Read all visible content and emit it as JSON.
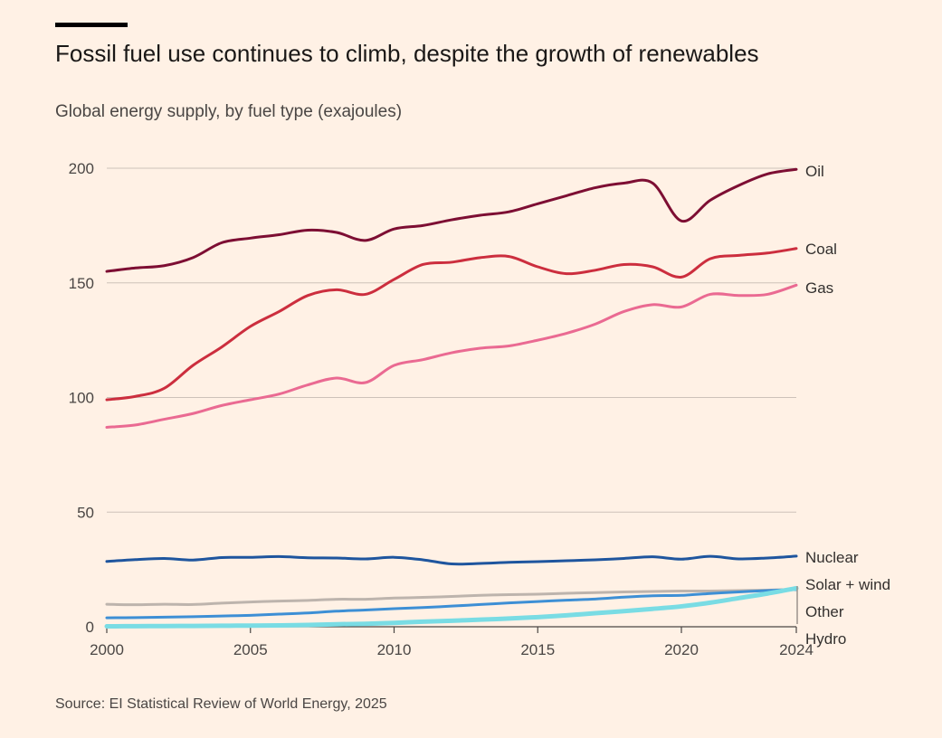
{
  "header": {
    "title": "Fossil fuel use continues to climb, despite the growth of renewables",
    "subtitle": "Global energy supply, by fuel type (exajoules)"
  },
  "footer": {
    "source": "Source: EI Statistical Review of World Energy, 2025"
  },
  "chart_data": {
    "type": "line",
    "title": "Fossil fuel use continues to climb, despite the growth of renewables",
    "subtitle": "Global energy supply, by fuel type (exajoules)",
    "xlabel": "",
    "ylabel": "",
    "xlim": [
      2000,
      2024
    ],
    "ylim": [
      0,
      200
    ],
    "x_ticks": [
      2000,
      2005,
      2010,
      2015,
      2020,
      2024
    ],
    "y_ticks": [
      0,
      50,
      100,
      150,
      200
    ],
    "grid": "horizontal",
    "legend": "direct labels at right end of lines",
    "x": [
      2000,
      2001,
      2002,
      2003,
      2004,
      2005,
      2006,
      2007,
      2008,
      2009,
      2010,
      2011,
      2012,
      2013,
      2014,
      2015,
      2016,
      2017,
      2018,
      2019,
      2020,
      2021,
      2022,
      2023,
      2024
    ],
    "series": [
      {
        "name": "Oil",
        "color": "#7D0E33",
        "values": [
          155,
          156.5,
          157.5,
          161,
          167.5,
          169.5,
          171,
          173,
          172,
          168.5,
          173.5,
          175,
          177.5,
          179.5,
          181,
          184.5,
          188,
          191.5,
          193.5,
          193.5,
          177,
          186,
          192.5,
          197.5,
          199.5
        ]
      },
      {
        "name": "Coal",
        "color": "#CC2E3E",
        "values": [
          99,
          100.5,
          104,
          114,
          122,
          131,
          137.5,
          144.5,
          147,
          145,
          151.5,
          158,
          159,
          161,
          161.5,
          157,
          154,
          155.5,
          158,
          157,
          152.5,
          160.5,
          162,
          163,
          165
        ]
      },
      {
        "name": "Gas",
        "color": "#EA6A92",
        "values": [
          87,
          88,
          90.5,
          93,
          96.5,
          99,
          101.5,
          105.5,
          108.5,
          106.5,
          114,
          116.5,
          119.5,
          121.5,
          122.5,
          125,
          128,
          132,
          137.5,
          140.5,
          139.5,
          145,
          144.5,
          145,
          149
        ]
      },
      {
        "name": "Nuclear",
        "color": "#1E559E",
        "values": [
          28.5,
          29.3,
          29.8,
          29.1,
          30.2,
          30.3,
          30.6,
          30.1,
          30,
          29.6,
          30.3,
          29.2,
          27.4,
          27.6,
          28.1,
          28.4,
          28.8,
          29.2,
          29.8,
          30.5,
          29.5,
          30.7,
          29.6,
          30,
          30.8
        ]
      },
      {
        "name": "Other",
        "color": "#BDB4AD",
        "values": [
          9.8,
          9.6,
          9.8,
          9.7,
          10.3,
          10.8,
          11.2,
          11.5,
          12,
          12,
          12.5,
          12.8,
          13.2,
          13.7,
          14,
          14.2,
          14.6,
          14.9,
          15.2,
          15.4,
          15.6,
          15.6,
          15.8,
          16,
          16.3
        ]
      },
      {
        "name": "Hydro",
        "color": "#3D8FD5",
        "values": [
          3.9,
          4,
          4.2,
          4.4,
          4.7,
          5,
          5.5,
          6,
          6.8,
          7.3,
          7.9,
          8.4,
          9,
          9.7,
          10.4,
          11,
          11.6,
          12.1,
          12.9,
          13.5,
          13.7,
          14.5,
          15.2,
          15.8,
          16.2
        ]
      },
      {
        "name": "Solar + wind",
        "color": "#79DCE4",
        "values": [
          0.2,
          0.25,
          0.3,
          0.35,
          0.45,
          0.5,
          0.6,
          0.8,
          1.1,
          1.3,
          1.7,
          2.2,
          2.6,
          3.1,
          3.6,
          4.2,
          5,
          5.9,
          6.8,
          7.8,
          8.9,
          10.5,
          12.5,
          14.5,
          16.8
        ]
      }
    ],
    "labels": [
      "Oil",
      "Coal",
      "Gas",
      "Nuclear",
      "Solar + wind",
      "Other",
      "Hydro"
    ]
  }
}
